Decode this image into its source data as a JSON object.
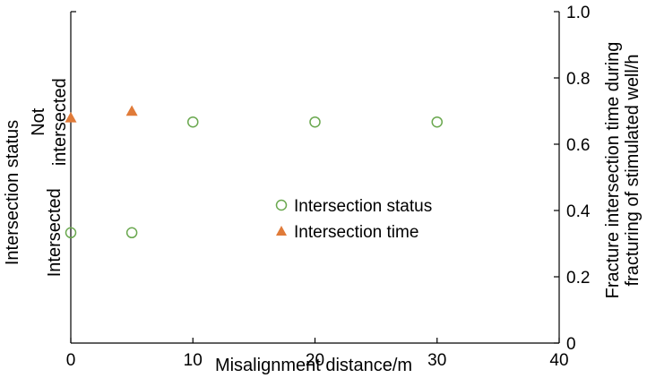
{
  "chart_data": {
    "type": "scatter",
    "title": "",
    "xlabel": "Misalignment distance/m",
    "ylabel_left": "Intersection status",
    "ylabel_right": [
      "Fracture intersection time during",
      "fracturing of stimulated well/h"
    ],
    "xlim": [
      0,
      40
    ],
    "ylim_right": [
      0,
      1.0
    ],
    "x_ticks": [
      0,
      10,
      20,
      30,
      40
    ],
    "x_tick_labels": [
      "0",
      "10",
      "20",
      "30",
      "40"
    ],
    "y_right_ticks": [
      0,
      0.2,
      0.4,
      0.6,
      0.8,
      1.0
    ],
    "y_right_tick_labels": [
      "0",
      "0.2",
      "0.4",
      "0.6",
      "0.8",
      "1.0"
    ],
    "y_left_categories": [
      {
        "label": "Intersected",
        "value": 0.333
      },
      {
        "label": "Not intersected",
        "label_lines": [
          "Not",
          "intersected"
        ],
        "value": 0.667
      }
    ],
    "legend_position": "center-right",
    "series": [
      {
        "name": "Intersection status",
        "marker": "circle-open",
        "color": "#6aa84f",
        "points": [
          {
            "x": 0,
            "y": 0.333
          },
          {
            "x": 5,
            "y": 0.333
          },
          {
            "x": 10,
            "y": 0.667
          },
          {
            "x": 20,
            "y": 0.667
          },
          {
            "x": 30,
            "y": 0.667
          }
        ]
      },
      {
        "name": "Intersection time",
        "marker": "triangle-filled",
        "color": "#e07b39",
        "points": [
          {
            "x": 0,
            "y": 0.68
          },
          {
            "x": 5,
            "y": 0.7
          }
        ]
      }
    ]
  }
}
